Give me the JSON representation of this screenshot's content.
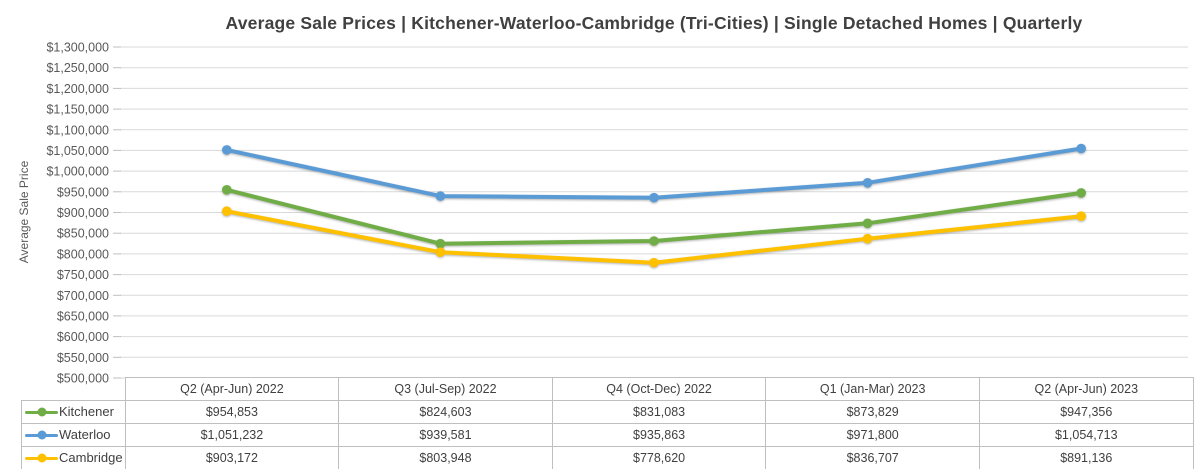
{
  "chart_data": {
    "type": "line",
    "title": "Average Sale Prices | Kitchener-Waterloo-Cambridge (Tri-Cities) | Single Detached Homes | Quarterly",
    "xlabel": "",
    "ylabel": "Average Sale Price",
    "categories": [
      "Q2 (Apr-Jun) 2022",
      "Q3 (Jul-Sep) 2022",
      "Q4 (Oct-Dec) 2022",
      "Q1 (Jan-Mar) 2023",
      "Q2 (Apr-Jun) 2023"
    ],
    "series": [
      {
        "name": "Kitchener",
        "color": "#70AD47",
        "values": [
          954853,
          824603,
          831083,
          873829,
          947356
        ],
        "labels": [
          "$954,853",
          "$824,603",
          "$831,083",
          "$873,829",
          "$947,356"
        ]
      },
      {
        "name": "Waterloo",
        "color": "#5B9BD5",
        "values": [
          1051232,
          939581,
          935863,
          971800,
          1054713
        ],
        "labels": [
          "$1,051,232",
          "$939,581",
          "$935,863",
          "$971,800",
          "$1,054,713"
        ]
      },
      {
        "name": "Cambridge",
        "color": "#FFC000",
        "values": [
          903172,
          803948,
          778620,
          836707,
          891136
        ],
        "labels": [
          "$903,172",
          "$803,948",
          "$778,620",
          "$836,707",
          "$891,136"
        ]
      }
    ],
    "y_axis": {
      "min": 500000,
      "max": 1300000,
      "step": 50000,
      "tick_labels": [
        "$1,300,000",
        "$1,250,000",
        "$1,200,000",
        "$1,150,000",
        "$1,100,000",
        "$1,050,000",
        "$1,000,000",
        "$950,000",
        "$900,000",
        "$850,000",
        "$800,000",
        "$750,000",
        "$700,000",
        "$650,000",
        "$600,000",
        "$550,000",
        "$500,000"
      ]
    },
    "grid": true,
    "legend_position": "data-table-left-column",
    "colors": {
      "title_text": "#404040",
      "axis_text": "#595959",
      "gridline": "#D9D9D9",
      "tick_mark": "#BFBFBF",
      "table_border": "#BFBFBF",
      "table_text": "#404040",
      "background": "#FFFFFF"
    }
  }
}
